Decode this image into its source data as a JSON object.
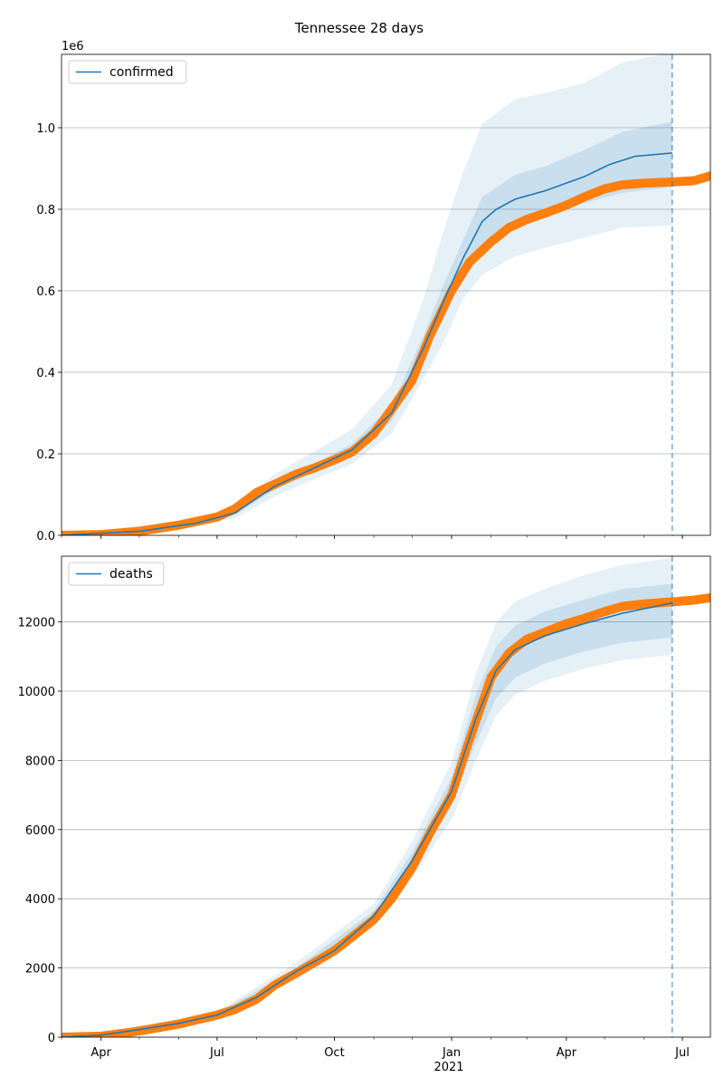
{
  "figure": {
    "title": "Tennessee 28 days"
  },
  "colors": {
    "forecast": "#1f77b4",
    "observed": "#ff7f0e",
    "grid": "#b0b0b0",
    "band": "#1f77b4"
  },
  "x_axis": {
    "tick_labels": [
      {
        "label": "Apr",
        "date": "2020-04-01"
      },
      {
        "label": "Jul",
        "date": "2020-07-01"
      },
      {
        "label": "Oct",
        "date": "2020-10-01"
      },
      {
        "label": "Jan",
        "date": "2021-01-01"
      },
      {
        "label": "Apr",
        "date": "2021-04-01"
      },
      {
        "label": "Jul",
        "date": "2021-07-01"
      }
    ],
    "year_label": "2021",
    "range": [
      "2020-03-01",
      "2021-07-23"
    ],
    "forecast_start": "2021-06-23"
  },
  "chart_data": [
    {
      "type": "line",
      "legend": "confirmed",
      "legend_position": "top-left",
      "ylim": [
        0,
        1180000
      ],
      "y_ticks": [
        0,
        200000,
        400000,
        600000,
        800000,
        1000000
      ],
      "y_tick_labels": [
        "0.0",
        "0.2",
        "0.4",
        "0.6",
        "0.8",
        "1.0"
      ],
      "offset_label": "1e6",
      "grid": true,
      "median": [
        [
          "2020-03-01",
          0
        ],
        [
          "2020-05-01",
          10000
        ],
        [
          "2020-06-15",
          30000
        ],
        [
          "2020-07-15",
          55000
        ],
        [
          "2020-08-15",
          120000
        ],
        [
          "2020-09-15",
          165000
        ],
        [
          "2020-10-15",
          210000
        ],
        [
          "2020-11-15",
          300000
        ],
        [
          "2020-12-10",
          460000
        ],
        [
          "2020-12-25",
          570000
        ],
        [
          "2021-01-10",
          680000
        ],
        [
          "2021-01-25",
          770000
        ],
        [
          "2021-02-05",
          800000
        ],
        [
          "2021-02-20",
          825000
        ],
        [
          "2021-03-15",
          845000
        ],
        [
          "2021-04-15",
          880000
        ],
        [
          "2021-05-05",
          910000
        ],
        [
          "2021-05-25",
          930000
        ],
        [
          "2021-06-23",
          938000
        ]
      ],
      "band_inner": {
        "lower": [
          [
            "2020-03-01",
            0
          ],
          [
            "2020-06-15",
            27000
          ],
          [
            "2020-07-15",
            50000
          ],
          [
            "2020-08-15",
            112000
          ],
          [
            "2020-09-15",
            155000
          ],
          [
            "2020-10-15",
            195000
          ],
          [
            "2020-11-15",
            280000
          ],
          [
            "2020-12-10",
            430000
          ],
          [
            "2020-12-25",
            530000
          ],
          [
            "2021-01-10",
            640000
          ],
          [
            "2021-01-25",
            715000
          ],
          [
            "2021-02-20",
            765000
          ],
          [
            "2021-03-15",
            785000
          ],
          [
            "2021-04-15",
            815000
          ],
          [
            "2021-05-15",
            840000
          ],
          [
            "2021-06-23",
            855000
          ]
        ],
        "upper": [
          [
            "2020-03-01",
            0
          ],
          [
            "2020-06-15",
            33000
          ],
          [
            "2020-07-15",
            60000
          ],
          [
            "2020-08-15",
            128000
          ],
          [
            "2020-09-15",
            175000
          ],
          [
            "2020-10-15",
            225000
          ],
          [
            "2020-11-15",
            320000
          ],
          [
            "2020-12-10",
            490000
          ],
          [
            "2020-12-25",
            610000
          ],
          [
            "2021-01-10",
            725000
          ],
          [
            "2021-01-25",
            830000
          ],
          [
            "2021-02-20",
            885000
          ],
          [
            "2021-03-15",
            905000
          ],
          [
            "2021-04-15",
            945000
          ],
          [
            "2021-05-15",
            990000
          ],
          [
            "2021-06-23",
            1015000
          ]
        ]
      },
      "band_outer": {
        "lower": [
          [
            "2020-03-01",
            0
          ],
          [
            "2020-06-15",
            22000
          ],
          [
            "2020-07-15",
            42000
          ],
          [
            "2020-08-15",
            95000
          ],
          [
            "2020-09-15",
            138000
          ],
          [
            "2020-10-15",
            175000
          ],
          [
            "2020-11-15",
            250000
          ],
          [
            "2020-12-10",
            385000
          ],
          [
            "2020-12-25",
            470000
          ],
          [
            "2021-01-10",
            580000
          ],
          [
            "2021-01-25",
            640000
          ],
          [
            "2021-02-20",
            685000
          ],
          [
            "2021-03-15",
            705000
          ],
          [
            "2021-04-15",
            730000
          ],
          [
            "2021-05-15",
            755000
          ],
          [
            "2021-06-23",
            760000
          ]
        ],
        "upper": [
          [
            "2020-03-01",
            0
          ],
          [
            "2020-06-15",
            40000
          ],
          [
            "2020-07-15",
            72000
          ],
          [
            "2020-08-15",
            150000
          ],
          [
            "2020-09-15",
            205000
          ],
          [
            "2020-10-15",
            260000
          ],
          [
            "2020-11-15",
            370000
          ],
          [
            "2020-12-10",
            580000
          ],
          [
            "2020-12-25",
            740000
          ],
          [
            "2021-01-10",
            890000
          ],
          [
            "2021-01-25",
            1010000
          ],
          [
            "2021-02-20",
            1070000
          ],
          [
            "2021-03-15",
            1085000
          ],
          [
            "2021-04-15",
            1110000
          ],
          [
            "2021-05-15",
            1160000
          ],
          [
            "2021-06-23",
            1185000
          ]
        ]
      },
      "observed": [
        [
          "2020-03-01",
          0
        ],
        [
          "2020-04-01",
          2000
        ],
        [
          "2020-05-01",
          10000
        ],
        [
          "2020-06-01",
          25000
        ],
        [
          "2020-07-01",
          45000
        ],
        [
          "2020-07-15",
          65000
        ],
        [
          "2020-08-01",
          105000
        ],
        [
          "2020-08-15",
          125000
        ],
        [
          "2020-09-01",
          150000
        ],
        [
          "2020-09-15",
          165000
        ],
        [
          "2020-10-01",
          185000
        ],
        [
          "2020-10-15",
          205000
        ],
        [
          "2020-11-01",
          250000
        ],
        [
          "2020-11-15",
          310000
        ],
        [
          "2020-12-01",
          380000
        ],
        [
          "2020-12-15",
          490000
        ],
        [
          "2021-01-01",
          600000
        ],
        [
          "2021-01-15",
          670000
        ],
        [
          "2021-02-01",
          720000
        ],
        [
          "2021-02-15",
          755000
        ],
        [
          "2021-03-01",
          775000
        ],
        [
          "2021-03-15",
          790000
        ],
        [
          "2021-04-01",
          810000
        ],
        [
          "2021-04-15",
          830000
        ],
        [
          "2021-05-01",
          850000
        ],
        [
          "2021-05-15",
          860000
        ],
        [
          "2021-06-01",
          864000
        ],
        [
          "2021-06-23",
          867000
        ],
        [
          "2021-07-10",
          870000
        ],
        [
          "2021-07-23",
          882000
        ]
      ]
    },
    {
      "type": "line",
      "legend": "deaths",
      "legend_position": "top-left",
      "ylim": [
        0,
        13900
      ],
      "y_ticks": [
        0,
        2000,
        4000,
        6000,
        8000,
        10000,
        12000
      ],
      "y_tick_labels": [
        "0",
        "2000",
        "4000",
        "6000",
        "8000",
        "10000",
        "12000"
      ],
      "offset_label": "",
      "grid": true,
      "median": [
        [
          "2020-03-01",
          0
        ],
        [
          "2020-04-01",
          60
        ],
        [
          "2020-05-01",
          220
        ],
        [
          "2020-06-01",
          400
        ],
        [
          "2020-07-01",
          640
        ],
        [
          "2020-08-01",
          1150
        ],
        [
          "2020-09-01",
          1900
        ],
        [
          "2020-10-01",
          2500
        ],
        [
          "2020-11-01",
          3500
        ],
        [
          "2020-12-01",
          5100
        ],
        [
          "2021-01-01",
          7100
        ],
        [
          "2021-01-20",
          9200
        ],
        [
          "2021-02-05",
          10600
        ],
        [
          "2021-02-20",
          11200
        ],
        [
          "2021-03-15",
          11600
        ],
        [
          "2021-04-15",
          11950
        ],
        [
          "2021-05-15",
          12250
        ],
        [
          "2021-06-23",
          12550
        ]
      ],
      "band_inner": {
        "lower": [
          [
            "2020-03-01",
            0
          ],
          [
            "2020-05-01",
            200
          ],
          [
            "2020-07-01",
            600
          ],
          [
            "2020-09-01",
            1800
          ],
          [
            "2020-11-01",
            3350
          ],
          [
            "2020-12-01",
            4850
          ],
          [
            "2021-01-01",
            6700
          ],
          [
            "2021-01-20",
            8500
          ],
          [
            "2021-02-05",
            9800
          ],
          [
            "2021-02-20",
            10400
          ],
          [
            "2021-03-15",
            10800
          ],
          [
            "2021-04-15",
            11150
          ],
          [
            "2021-05-15",
            11400
          ],
          [
            "2021-06-23",
            11550
          ]
        ],
        "upper": [
          [
            "2020-03-01",
            0
          ],
          [
            "2020-05-01",
            240
          ],
          [
            "2020-07-01",
            690
          ],
          [
            "2020-09-01",
            2000
          ],
          [
            "2020-11-01",
            3650
          ],
          [
            "2020-12-01",
            5350
          ],
          [
            "2021-01-01",
            7500
          ],
          [
            "2021-01-20",
            9900
          ],
          [
            "2021-02-05",
            11300
          ],
          [
            "2021-02-20",
            11900
          ],
          [
            "2021-03-15",
            12300
          ],
          [
            "2021-04-15",
            12650
          ],
          [
            "2021-05-15",
            12950
          ],
          [
            "2021-06-23",
            13100
          ]
        ]
      },
      "band_outer": {
        "lower": [
          [
            "2020-03-01",
            0
          ],
          [
            "2020-05-01",
            180
          ],
          [
            "2020-07-01",
            560
          ],
          [
            "2020-09-01",
            1700
          ],
          [
            "2020-11-01",
            3200
          ],
          [
            "2020-12-01",
            4600
          ],
          [
            "2021-01-01",
            6300
          ],
          [
            "2021-01-20",
            8000
          ],
          [
            "2021-02-05",
            9300
          ],
          [
            "2021-02-20",
            9900
          ],
          [
            "2021-03-15",
            10300
          ],
          [
            "2021-04-15",
            10650
          ],
          [
            "2021-05-15",
            10900
          ],
          [
            "2021-06-23",
            11050
          ]
        ],
        "upper": [
          [
            "2020-03-01",
            0
          ],
          [
            "2020-05-01",
            260
          ],
          [
            "2020-07-01",
            740
          ],
          [
            "2020-09-01",
            2150
          ],
          [
            "2020-11-01",
            3850
          ],
          [
            "2020-12-01",
            5650
          ],
          [
            "2021-01-01",
            7950
          ],
          [
            "2021-01-20",
            10500
          ],
          [
            "2021-02-05",
            12000
          ],
          [
            "2021-02-20",
            12600
          ],
          [
            "2021-03-15",
            12950
          ],
          [
            "2021-04-15",
            13350
          ],
          [
            "2021-05-15",
            13650
          ],
          [
            "2021-06-23",
            13850
          ]
        ]
      },
      "observed": [
        [
          "2020-03-01",
          0
        ],
        [
          "2020-04-01",
          30
        ],
        [
          "2020-04-20",
          120
        ],
        [
          "2020-05-01",
          180
        ],
        [
          "2020-06-01",
          380
        ],
        [
          "2020-07-01",
          640
        ],
        [
          "2020-07-15",
          800
        ],
        [
          "2020-08-01",
          1100
        ],
        [
          "2020-08-15",
          1500
        ],
        [
          "2020-09-01",
          1850
        ],
        [
          "2020-09-15",
          2150
        ],
        [
          "2020-10-01",
          2500
        ],
        [
          "2020-10-15",
          2900
        ],
        [
          "2020-11-01",
          3400
        ],
        [
          "2020-11-15",
          4000
        ],
        [
          "2020-12-01",
          4900
        ],
        [
          "2020-12-15",
          5900
        ],
        [
          "2021-01-01",
          7000
        ],
        [
          "2021-01-15",
          8600
        ],
        [
          "2021-02-01",
          10400
        ],
        [
          "2021-02-15",
          11100
        ],
        [
          "2021-03-01",
          11500
        ],
        [
          "2021-03-15",
          11700
        ],
        [
          "2021-04-01",
          11950
        ],
        [
          "2021-04-15",
          12100
        ],
        [
          "2021-05-01",
          12300
        ],
        [
          "2021-05-15",
          12450
        ],
        [
          "2021-06-01",
          12520
        ],
        [
          "2021-06-23",
          12580
        ],
        [
          "2021-07-10",
          12630
        ],
        [
          "2021-07-23",
          12700
        ]
      ]
    }
  ]
}
